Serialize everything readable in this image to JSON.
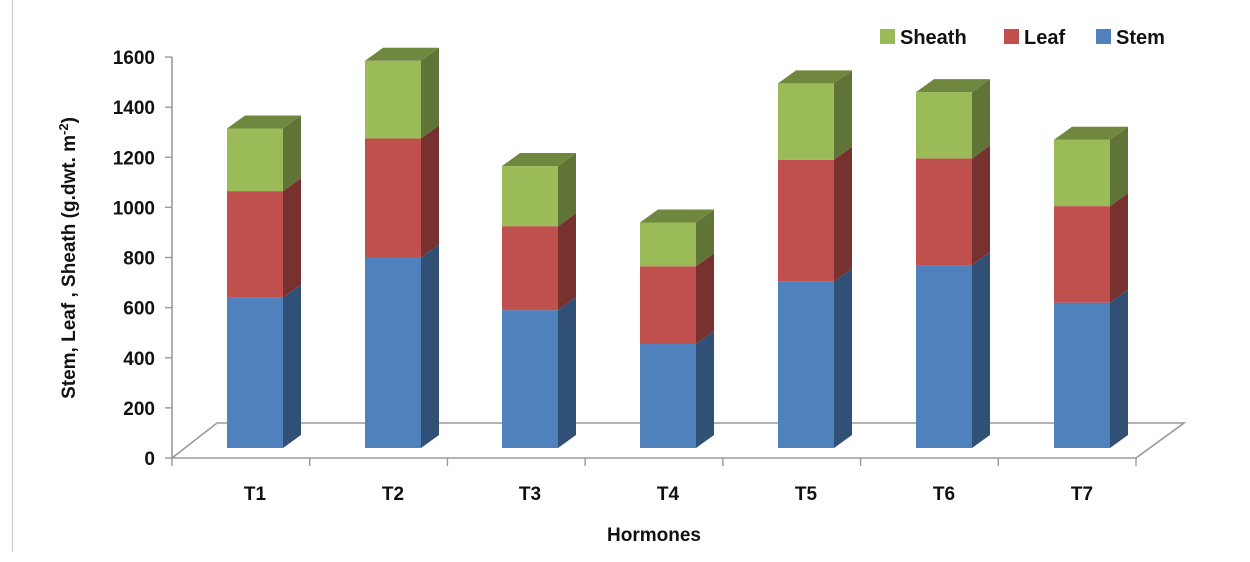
{
  "chart_data": {
    "type": "bar",
    "stacked": true,
    "style": "3d-column",
    "categories": [
      "T1",
      "T2",
      "T3",
      "T4",
      "T5",
      "T6",
      "T7"
    ],
    "series": [
      {
        "name": "Stem",
        "color": "#4F81BD",
        "values": [
          600,
          760,
          550,
          415,
          665,
          730,
          580
        ]
      },
      {
        "name": "Leaf",
        "color": "#C0504D",
        "values": [
          425,
          475,
          335,
          310,
          485,
          425,
          385
        ]
      },
      {
        "name": "Sheath",
        "color": "#9BBB59",
        "values": [
          250,
          310,
          240,
          175,
          305,
          265,
          265
        ]
      }
    ],
    "xlabel": "Hormones",
    "ylabel": "Stem, Leaf , Sheath (g.dwt. m",
    "ylabel_superscript": "-2",
    "ylabel_suffix": ")",
    "ylim": [
      0,
      1600
    ],
    "yticks": [
      0,
      200,
      400,
      600,
      800,
      1000,
      1200,
      1400,
      1600
    ],
    "grid": false,
    "legend_position": "top-right",
    "legend_order": [
      "Sheath",
      "Leaf",
      "Stem"
    ]
  }
}
